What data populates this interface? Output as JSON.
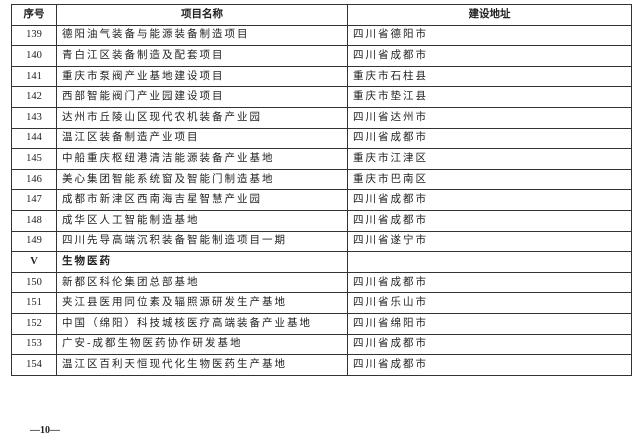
{
  "table": {
    "headers": [
      "序号",
      "项目名称",
      "建设地址"
    ],
    "rows": [
      {
        "no": "139",
        "name": "德阳油气装备与能源装备制造项目",
        "addr": "四川省德阳市"
      },
      {
        "no": "140",
        "name": "青白江区装备制造及配套项目",
        "addr": "四川省成都市"
      },
      {
        "no": "141",
        "name": "重庆市泵阀产业基地建设项目",
        "addr": "重庆市石柱县"
      },
      {
        "no": "142",
        "name": "西部智能阀门产业园建设项目",
        "addr": "重庆市垫江县"
      },
      {
        "no": "143",
        "name": "达州市丘陵山区现代农机装备产业园",
        "addr": "四川省达州市"
      },
      {
        "no": "144",
        "name": "温江区装备制造产业项目",
        "addr": "四川省成都市"
      },
      {
        "no": "145",
        "name": "中船重庆枢纽港清洁能源装备产业基地",
        "addr": "重庆市江津区"
      },
      {
        "no": "146",
        "name": "美心集团智能系统窗及智能门制造基地",
        "addr": "重庆市巴南区"
      },
      {
        "no": "147",
        "name": "成都市新津区西南海吉星智慧产业园",
        "addr": "四川省成都市"
      },
      {
        "no": "148",
        "name": "成华区人工智能制造基地",
        "addr": "四川省成都市"
      },
      {
        "no": "149",
        "name": "四川先导高端沉积装备智能制造项目一期",
        "addr": "四川省遂宁市"
      },
      {
        "no": "V",
        "name": "生物医药",
        "addr": "",
        "section": true
      },
      {
        "no": "150",
        "name": "新都区科伦集团总部基地",
        "addr": "四川省成都市"
      },
      {
        "no": "151",
        "name": "夹江县医用同位素及辐照源研发生产基地",
        "addr": "四川省乐山市"
      },
      {
        "no": "152",
        "name": "中国（绵阳）科技城核医疗高端装备产业基地",
        "addr": "四川省绵阳市"
      },
      {
        "no": "153",
        "name": "广安-成都生物医药协作研发基地",
        "addr": "四川省成都市"
      },
      {
        "no": "154",
        "name": "温江区百利天恒现代化生物医药生产基地",
        "addr": "四川省成都市"
      }
    ]
  },
  "footer": {
    "page_number": "—10—"
  }
}
